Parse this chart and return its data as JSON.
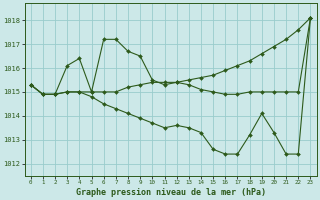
{
  "title": "Graphe pression niveau de la mer (hPa)",
  "background_color": "#cce8e8",
  "grid_color": "#99cccc",
  "line_color": "#2d5a1b",
  "xlim": [
    -0.5,
    23.5
  ],
  "ylim": [
    1011.5,
    1018.7
  ],
  "yticks": [
    1012,
    1013,
    1014,
    1015,
    1016,
    1017,
    1018
  ],
  "xticks": [
    0,
    1,
    2,
    3,
    4,
    5,
    6,
    7,
    8,
    9,
    10,
    11,
    12,
    13,
    14,
    15,
    16,
    17,
    18,
    19,
    20,
    21,
    22,
    23
  ],
  "series": [
    {
      "x": [
        0,
        1,
        2,
        3,
        4,
        5,
        6,
        7,
        8,
        9,
        10,
        11,
        12,
        13,
        14,
        15,
        16,
        17,
        18,
        19,
        20,
        21,
        22,
        23
      ],
      "y": [
        1015.3,
        1014.9,
        1014.9,
        1016.1,
        1016.4,
        1015.0,
        1017.2,
        1017.2,
        1016.7,
        1016.5,
        1015.5,
        1015.3,
        1015.4,
        1015.5,
        1015.6,
        1015.7,
        1015.9,
        1016.1,
        1016.3,
        1016.6,
        1016.9,
        1017.2,
        1017.6,
        1018.1
      ]
    },
    {
      "x": [
        0,
        1,
        2,
        3,
        4,
        5,
        6,
        7,
        8,
        9,
        10,
        11,
        12,
        13,
        14,
        15,
        16,
        17,
        18,
        19,
        20,
        21,
        22,
        23
      ],
      "y": [
        1015.3,
        1014.9,
        1014.9,
        1015.0,
        1015.0,
        1015.0,
        1015.0,
        1015.0,
        1015.2,
        1015.3,
        1015.4,
        1015.4,
        1015.4,
        1015.3,
        1015.1,
        1015.0,
        1014.9,
        1014.9,
        1015.0,
        1015.0,
        1015.0,
        1015.0,
        1015.0,
        1018.1
      ]
    },
    {
      "x": [
        0,
        1,
        2,
        3,
        4,
        5,
        6,
        7,
        8,
        9,
        10,
        11,
        12,
        13,
        14,
        15,
        16,
        17,
        18,
        19,
        20,
        21,
        22,
        23
      ],
      "y": [
        1015.3,
        1014.9,
        1014.9,
        1015.0,
        1015.0,
        1014.8,
        1014.5,
        1014.3,
        1014.1,
        1013.9,
        1013.7,
        1013.5,
        1013.6,
        1013.5,
        1013.3,
        1012.6,
        1012.4,
        1012.4,
        1013.2,
        1014.1,
        1013.3,
        1012.4,
        1012.4,
        1018.1
      ]
    }
  ]
}
